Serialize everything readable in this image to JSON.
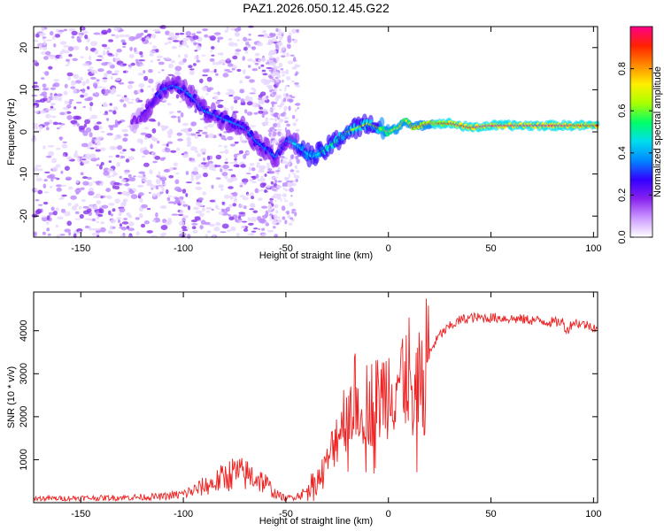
{
  "title": "PAZ1.2026.050.12.45.G22",
  "chart_data": [
    {
      "type": "heatmap",
      "name": "spectrogram",
      "xlabel": "Height of straight line (km)",
      "ylabel": "Frequency (Hz)",
      "xlim": [
        -173,
        102
      ],
      "ylim": [
        -25,
        25
      ],
      "x_ticks": [
        -150,
        -100,
        -50,
        0,
        50,
        100
      ],
      "y_ticks": [
        -20,
        -10,
        0,
        10,
        20
      ],
      "colorbar": {
        "label": "Normalized spectral amplitude",
        "range": [
          0,
          1
        ],
        "ticks": [
          "0.0",
          "0.2",
          "0.4",
          "0.6",
          "0.8"
        ],
        "tick_values": [
          0.0,
          0.2,
          0.4,
          0.6,
          0.8
        ],
        "colors": [
          "#ffffff",
          "#cc99ff",
          "#8822ee",
          "#3300ff",
          "#0088ff",
          "#00ddee",
          "#00ff66",
          "#aaff00",
          "#ffee00",
          "#ff8800",
          "#ff2200",
          "#ff0088"
        ]
      },
      "ridge_frequency": {
        "x": [
          -170,
          -150,
          -130,
          -120,
          -110,
          -105,
          -100,
          -95,
          -90,
          -85,
          -80,
          -75,
          -70,
          -65,
          -60,
          -55,
          -50,
          -45,
          -40,
          -37,
          -33,
          -30,
          -25,
          -20,
          -15,
          -10,
          -5,
          0,
          5,
          8,
          12,
          20,
          30,
          40,
          50,
          60,
          70,
          80,
          90,
          100
        ],
        "y": [
          0,
          0,
          0,
          4,
          10,
          11,
          10,
          8,
          5,
          4,
          3,
          2,
          1,
          -2,
          -4,
          -6,
          -2,
          -3,
          -5,
          -6,
          -5,
          -4,
          -2,
          0,
          1,
          2,
          1,
          0,
          1,
          3,
          1,
          2,
          2,
          1,
          1.5,
          1.5,
          1.5,
          1.5,
          1.5,
          1.5
        ],
        "amplitude": [
          0.1,
          0.1,
          0.1,
          0.2,
          0.3,
          0.3,
          0.35,
          0.35,
          0.35,
          0.35,
          0.35,
          0.35,
          0.35,
          0.35,
          0.3,
          0.3,
          0.35,
          0.4,
          0.45,
          0.45,
          0.45,
          0.5,
          0.5,
          0.55,
          0.55,
          0.6,
          0.6,
          0.65,
          0.7,
          0.7,
          0.75,
          0.8,
          0.85,
          0.9,
          0.95,
          0.95,
          0.95,
          0.95,
          0.9,
          0.85
        ]
      }
    },
    {
      "type": "line",
      "name": "snr",
      "xlabel": "Height of straight line (km)",
      "ylabel": "SNR (10 * v/v)",
      "xlim": [
        -173,
        102
      ],
      "ylim": [
        0,
        4900
      ],
      "x_ticks": [
        -150,
        -100,
        -50,
        0,
        50,
        100
      ],
      "y_ticks": [
        1000,
        2000,
        3000,
        4000
      ],
      "series": [
        {
          "name": "SNR",
          "color": "#ee2222",
          "x": [
            -173,
            -160,
            -150,
            -140,
            -130,
            -120,
            -110,
            -100,
            -95,
            -90,
            -85,
            -80,
            -75,
            -70,
            -65,
            -60,
            -55,
            -50,
            -45,
            -40,
            -35,
            -30,
            -25,
            -20,
            -15,
            -10,
            -5,
            0,
            5,
            10,
            12,
            15,
            20,
            25,
            30,
            35,
            40,
            45,
            50,
            55,
            60,
            70,
            80,
            85,
            87,
            90,
            95,
            100,
            102
          ],
          "y": [
            100,
            100,
            110,
            110,
            120,
            130,
            140,
            200,
            280,
            380,
            450,
            600,
            700,
            650,
            600,
            450,
            200,
            100,
            150,
            250,
            450,
            900,
            1600,
            2200,
            2500,
            2300,
            2400,
            2700,
            2900,
            3100,
            1800,
            3000,
            3500,
            3900,
            4100,
            4250,
            4300,
            4300,
            4300,
            4300,
            4280,
            4250,
            4200,
            4200,
            4000,
            4200,
            4150,
            4100,
            4050
          ]
        }
      ]
    }
  ]
}
